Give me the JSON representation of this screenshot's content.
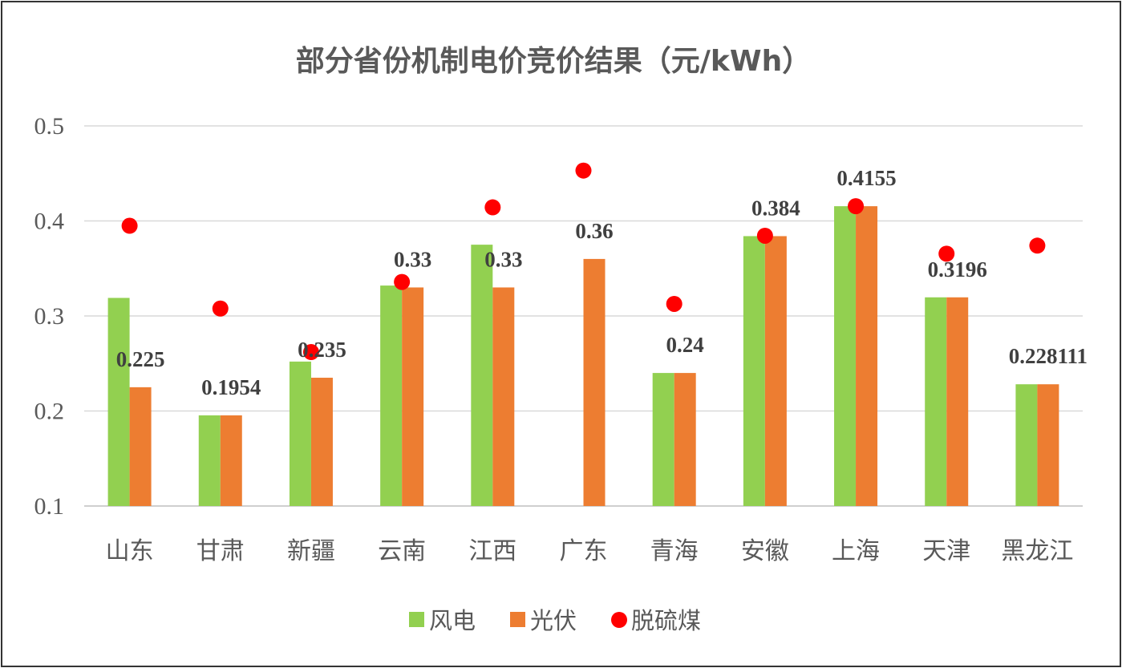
{
  "chart_data": {
    "type": "bar",
    "title": "部分省份机制电价竞价结果（元/kWh）",
    "xlabel": "",
    "ylabel": "",
    "ylim": [
      0.1,
      0.5
    ],
    "yticks": [
      "0.1",
      "0.2",
      "0.3",
      "0.4",
      "0.5"
    ],
    "grid": true,
    "legend_position": "bottom",
    "categories": [
      "山东",
      "甘肃",
      "新疆",
      "云南",
      "江西",
      "广东",
      "青海",
      "安徽",
      "上海",
      "天津",
      "黑龙江"
    ],
    "series": [
      {
        "name": "风电",
        "kind": "bar",
        "color": "#92D050",
        "values": [
          0.319,
          0.1954,
          0.252,
          0.332,
          0.375,
          null,
          0.24,
          0.384,
          0.4155,
          0.3196,
          0.228111
        ]
      },
      {
        "name": "光伏",
        "kind": "bar",
        "color": "#ED7D31",
        "values": [
          0.225,
          0.1954,
          0.235,
          0.33,
          0.33,
          0.36,
          0.24,
          0.384,
          0.4155,
          0.3196,
          0.228111
        ],
        "data_labels": [
          "0.225",
          "0.1954",
          "0.235",
          "0.33",
          "0.33",
          "0.36",
          "0.24",
          "0.384",
          "0.4155",
          "0.3196",
          "0.228111"
        ]
      },
      {
        "name": "脱硫煤",
        "kind": "scatter",
        "color": "#FF0000",
        "values": [
          0.3949,
          0.3078,
          0.262,
          0.3358,
          0.4143,
          0.453,
          0.3127,
          0.3844,
          0.4155,
          0.3655,
          0.374
        ]
      }
    ]
  }
}
